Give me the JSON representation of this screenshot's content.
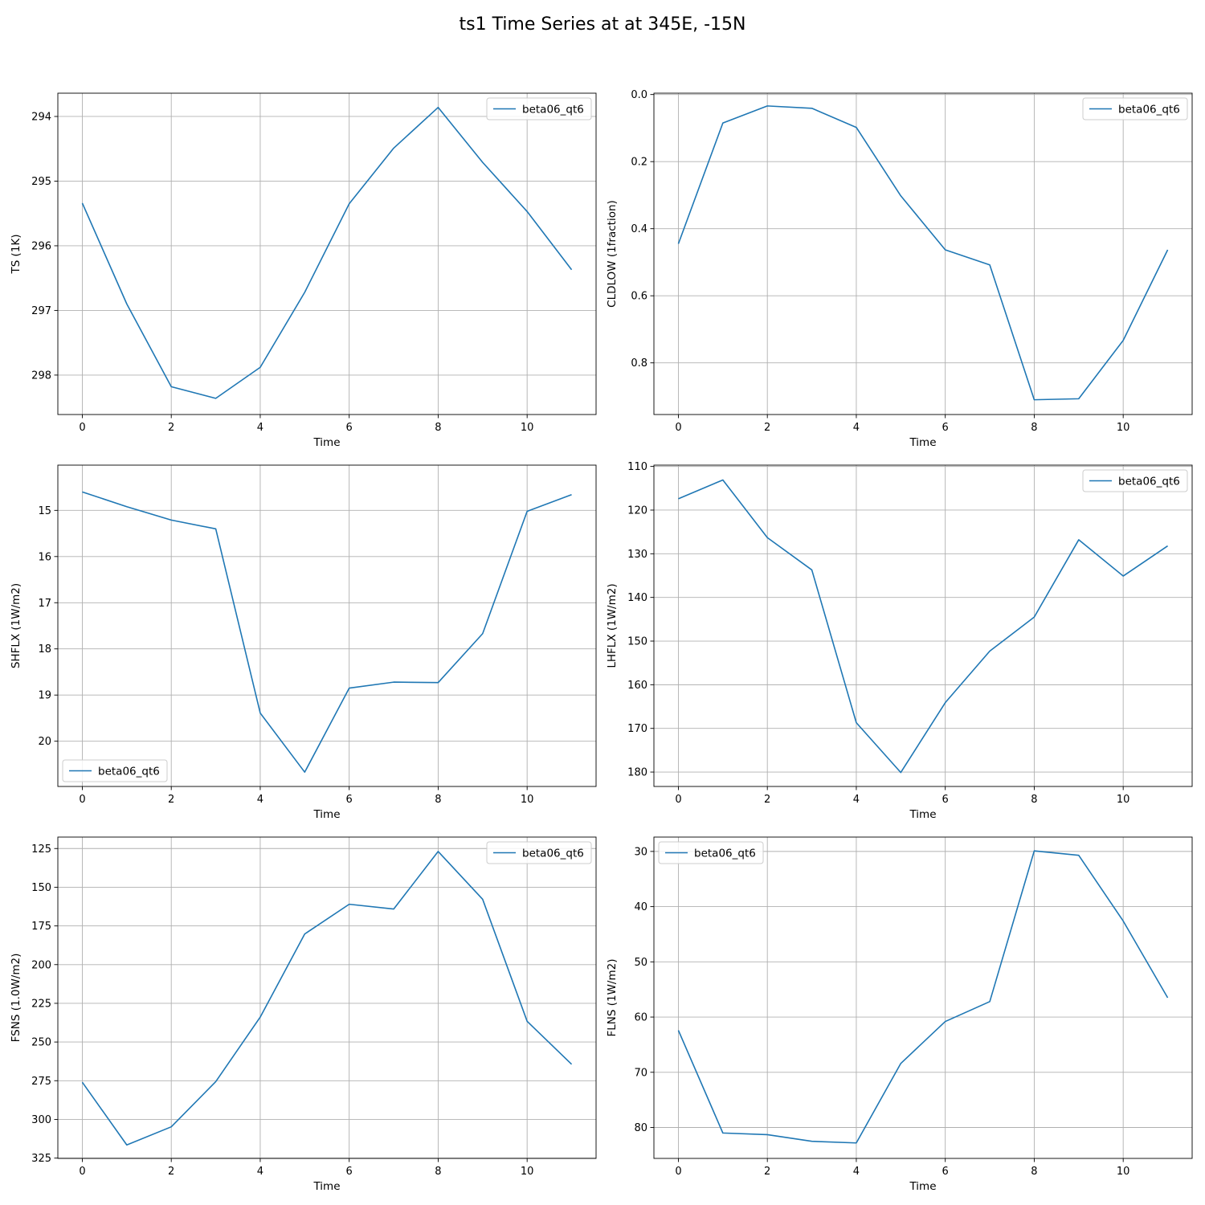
{
  "figure": {
    "title": "ts1 Time Series at at 345E, -15N"
  },
  "colors": {
    "series": "#1f77b4",
    "grid": "#b0b0b0",
    "axis": "#000000",
    "legend_border": "#cccccc"
  },
  "chart_data": [
    {
      "type": "line",
      "xlabel": "Time",
      "ylabel": "TS (1K)",
      "xlim": [
        -0.55,
        11.55
      ],
      "xticks": [
        0,
        2,
        4,
        6,
        8,
        10
      ],
      "ylim": [
        298.61,
        293.64
      ],
      "y_inverted": true,
      "yticks": [
        294,
        295,
        296,
        297,
        298
      ],
      "grid": true,
      "legend": "upper right",
      "series": [
        {
          "name": "beta06_qt6",
          "x": [
            0,
            1,
            2,
            3,
            4,
            5,
            6,
            7,
            8,
            9,
            10,
            11
          ],
          "y": [
            295.34,
            296.9,
            298.18,
            298.36,
            297.88,
            296.72,
            295.35,
            294.49,
            293.86,
            294.71,
            295.47,
            296.37
          ]
        }
      ]
    },
    {
      "type": "line",
      "xlabel": "Time",
      "ylabel": "CLDLOW (1fraction)",
      "xlim": [
        -0.55,
        11.55
      ],
      "xticks": [
        0,
        2,
        4,
        6,
        8,
        10
      ],
      "ylim": [
        0.954,
        -0.004
      ],
      "y_inverted": true,
      "yticks": [
        0.0,
        0.2,
        0.4,
        0.6,
        0.8
      ],
      "grid": true,
      "legend": "upper right",
      "series": [
        {
          "name": "beta06_qt6",
          "x": [
            0,
            1,
            2,
            3,
            4,
            5,
            6,
            7,
            8,
            9,
            10,
            11
          ],
          "y": [
            0.445,
            0.085,
            0.034,
            0.041,
            0.098,
            0.302,
            0.463,
            0.508,
            0.91,
            0.907,
            0.733,
            0.463
          ]
        }
      ]
    },
    {
      "type": "line",
      "xlabel": "Time",
      "ylabel": "SHFLX (1W/m2)",
      "xlim": [
        -0.55,
        11.55
      ],
      "xticks": [
        0,
        2,
        4,
        6,
        8,
        10
      ],
      "ylim": [
        20.98,
        14.02
      ],
      "y_inverted": true,
      "yticks": [
        15,
        16,
        17,
        18,
        19,
        20
      ],
      "grid": true,
      "legend": "lower left",
      "series": [
        {
          "name": "beta06_qt6",
          "x": [
            0,
            1,
            2,
            3,
            4,
            5,
            6,
            7,
            8,
            9,
            10,
            11
          ],
          "y": [
            14.6,
            14.92,
            15.21,
            15.4,
            19.39,
            20.67,
            18.85,
            18.72,
            18.73,
            17.67,
            15.02,
            14.66
          ]
        }
      ]
    },
    {
      "type": "line",
      "xlabel": "Time",
      "ylabel": "LHFLX (1W/m2)",
      "xlim": [
        -0.55,
        11.55
      ],
      "xticks": [
        0,
        2,
        4,
        6,
        8,
        10
      ],
      "ylim": [
        183.3,
        109.7
      ],
      "y_inverted": true,
      "yticks": [
        110,
        120,
        130,
        140,
        150,
        160,
        170,
        180
      ],
      "grid": true,
      "legend": "upper right",
      "series": [
        {
          "name": "beta06_qt6",
          "x": [
            0,
            1,
            2,
            3,
            4,
            5,
            6,
            7,
            8,
            9,
            10,
            11
          ],
          "y": [
            117.4,
            113.1,
            126.3,
            133.7,
            168.7,
            180.1,
            164.1,
            152.3,
            144.5,
            126.8,
            135.1,
            128.2
          ]
        }
      ]
    },
    {
      "type": "line",
      "xlabel": "Time",
      "ylabel": "FSNS (1.0W/m2)",
      "xlim": [
        -0.55,
        11.55
      ],
      "xticks": [
        0,
        2,
        4,
        6,
        8,
        10
      ],
      "ylim": [
        325.2,
        117.6
      ],
      "y_inverted": true,
      "yticks": [
        125,
        150,
        175,
        200,
        225,
        250,
        275,
        300,
        325
      ],
      "grid": true,
      "legend": "upper right",
      "series": [
        {
          "name": "beta06_qt6",
          "x": [
            0,
            1,
            2,
            3,
            4,
            5,
            6,
            7,
            8,
            9,
            10,
            11
          ],
          "y": [
            276.0,
            316.5,
            304.8,
            275.6,
            233.9,
            180.2,
            161.0,
            164.1,
            126.9,
            157.8,
            236.6,
            264.4
          ]
        }
      ]
    },
    {
      "type": "line",
      "xlabel": "Time",
      "ylabel": "FLNS (1W/m2)",
      "xlim": [
        -0.55,
        11.55
      ],
      "xticks": [
        0,
        2,
        4,
        6,
        8,
        10
      ],
      "ylim": [
        85.6,
        27.4
      ],
      "y_inverted": true,
      "yticks": [
        30,
        40,
        50,
        60,
        70,
        80
      ],
      "grid": true,
      "legend": "upper left",
      "series": [
        {
          "name": "beta06_qt6",
          "x": [
            0,
            1,
            2,
            3,
            4,
            5,
            6,
            7,
            8,
            9,
            10,
            11
          ],
          "y": [
            62.4,
            81.0,
            81.3,
            82.5,
            82.8,
            68.4,
            60.8,
            57.2,
            29.9,
            30.7,
            42.6,
            56.5
          ]
        }
      ]
    }
  ]
}
